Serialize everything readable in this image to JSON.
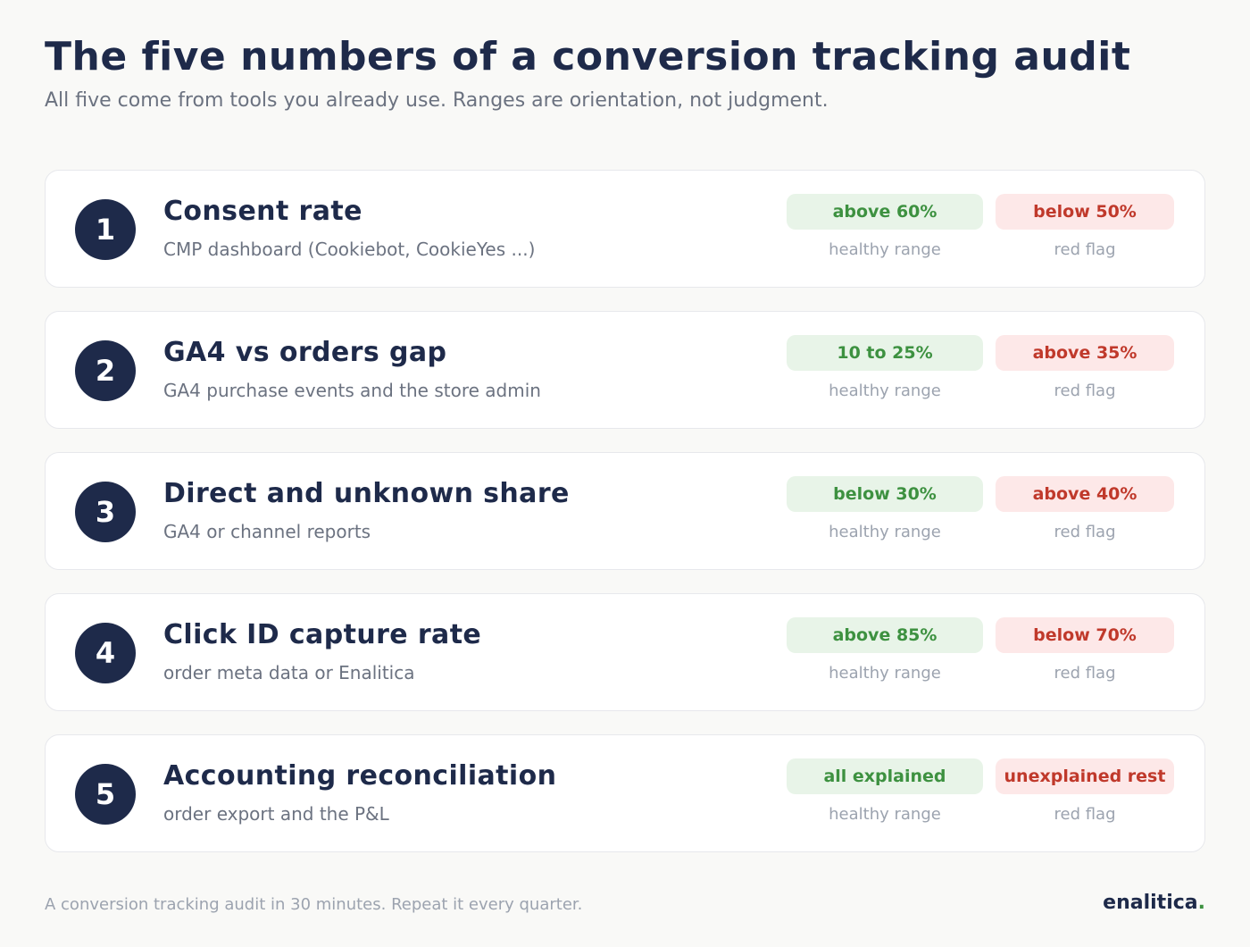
{
  "header": {
    "title": "The five numbers of a conversion tracking audit",
    "subtitle": "All five come from tools you already use. Ranges are orientation, not judgment."
  },
  "colors": {
    "navy": "#1e2a4a",
    "healthy_text": "#3d9140",
    "healthy_bg": "#e8f4e8",
    "flag_text": "#c0392b",
    "flag_bg": "#fde8e8"
  },
  "metrics": [
    {
      "number": "1",
      "title": "Consent rate",
      "source": "CMP dashboard (Cookiebot, CookieYes ...)",
      "healthy": "above 60%",
      "healthy_label": "healthy range",
      "flag": "below 50%",
      "flag_label": "red flag"
    },
    {
      "number": "2",
      "title": "GA4 vs orders gap",
      "source": "GA4 purchase events and the store admin",
      "healthy": "10 to 25%",
      "healthy_label": "healthy range",
      "flag": "above 35%",
      "flag_label": "red flag"
    },
    {
      "number": "3",
      "title": "Direct and unknown share",
      "source": "GA4 or channel reports",
      "healthy": "below 30%",
      "healthy_label": "healthy range",
      "flag": "above 40%",
      "flag_label": "red flag"
    },
    {
      "number": "4",
      "title": "Click ID capture rate",
      "source": "order meta data or Enalitica",
      "healthy": "above 85%",
      "healthy_label": "healthy range",
      "flag": "below 70%",
      "flag_label": "red flag"
    },
    {
      "number": "5",
      "title": "Accounting reconciliation",
      "source": "order export and the P&L",
      "healthy": "all explained",
      "healthy_label": "healthy range",
      "flag": "unexplained rest",
      "flag_label": "red flag"
    }
  ],
  "footer": {
    "note": "A conversion tracking audit in 30 minutes. Repeat it every quarter.",
    "brand": "enalitica",
    "brand_dot": "."
  }
}
